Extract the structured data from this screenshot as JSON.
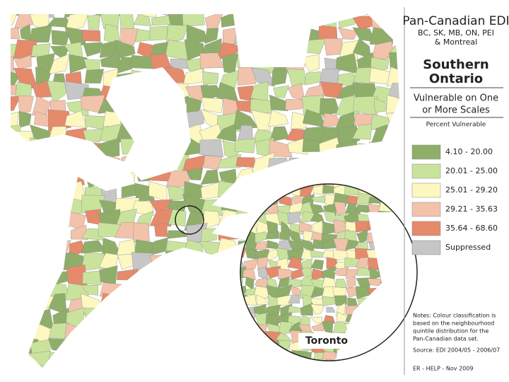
{
  "header": {
    "title": "Pan-Canadian EDI",
    "subtitle_lines": [
      "BC, SK, MB, ON, PEI",
      "& Montreal"
    ],
    "region_lines": [
      "Southern",
      "Ontario"
    ],
    "measure_lines": [
      "Vulnerable on One",
      "or More Scales"
    ],
    "legend_title": "Percent Vulnerable"
  },
  "legend": [
    {
      "label": "4.10 - 20.00",
      "color": "#8fae6a"
    },
    {
      "label": "20.01 - 25.00",
      "color": "#c9e39d"
    },
    {
      "label": "25.01 - 29.20",
      "color": "#fdf7c0"
    },
    {
      "label": "29.21 - 35.63",
      "color": "#f2c2aa"
    },
    {
      "label": "35.64 - 68.60",
      "color": "#e58a6b"
    },
    {
      "label": "Suppressed",
      "color": "#c6c6c6"
    }
  ],
  "notes": [
    "Notes: Colour classification is",
    "based on the neighbourhood",
    "quintile distribution for the",
    "Pan-Canadian data set."
  ],
  "source": "Source: EDI 2004/05 - 2006/07",
  "credit": "ER - HELP - Nov 2009",
  "inset_label": "Toronto"
}
